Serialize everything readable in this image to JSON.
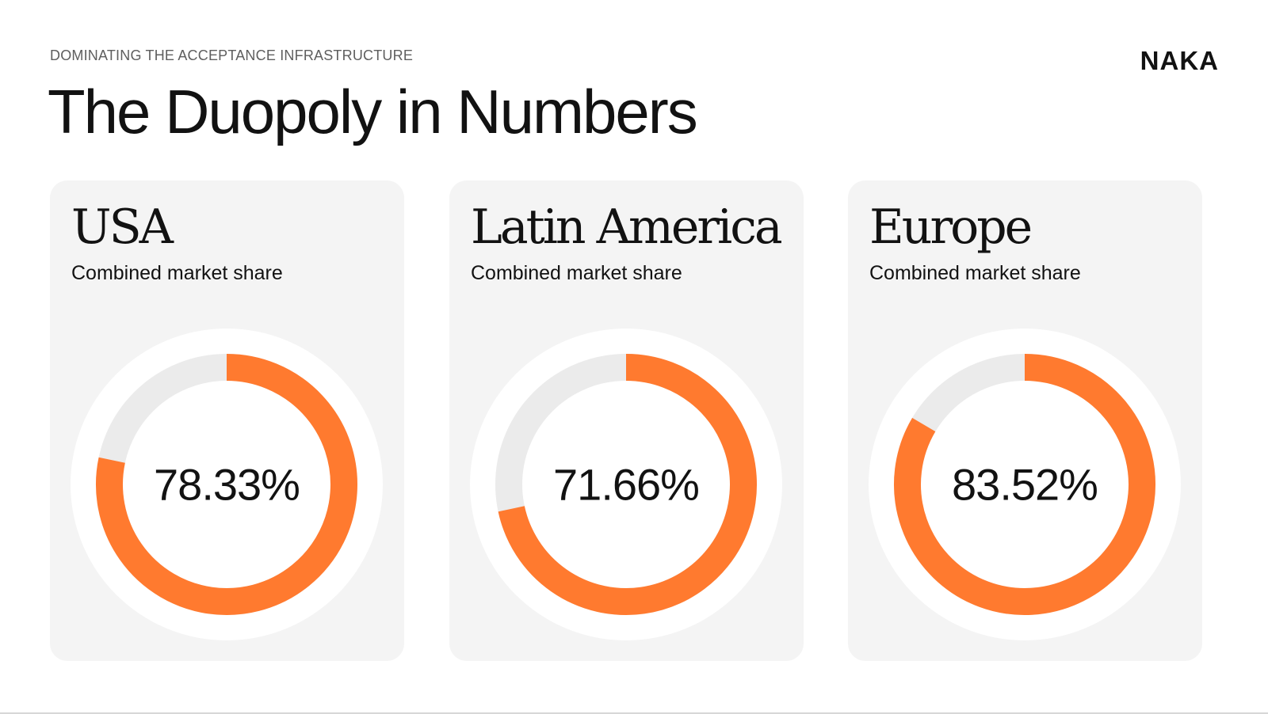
{
  "header": {
    "eyebrow": "DOMINATING THE ACCEPTANCE INFRASTRUCTURE",
    "logo": "NAKA",
    "title": "The Duopoly in Numbers"
  },
  "colors": {
    "accent": "#ff7a2f",
    "track": "#ebebeb",
    "halo": "#ffffff",
    "card": "#f4f4f4"
  },
  "chart_data": [
    {
      "type": "pie",
      "title": "USA",
      "subtitle": "Combined market share",
      "value": 78.33,
      "label": "78.33%",
      "max": 100
    },
    {
      "type": "pie",
      "title": "Latin America",
      "subtitle": "Combined market share",
      "value": 71.66,
      "label": "71.66%",
      "max": 100
    },
    {
      "type": "pie",
      "title": "Europe",
      "subtitle": "Combined market share",
      "value": 83.52,
      "label": "83.52%",
      "max": 100
    }
  ]
}
